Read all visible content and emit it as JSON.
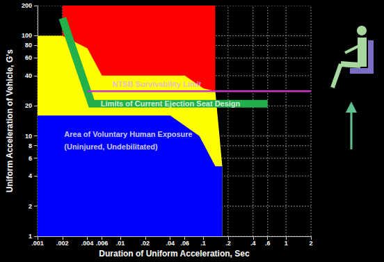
{
  "chart_data": {
    "type": "area",
    "xlabel": "Duration of Uniform Acceleration, Sec",
    "ylabel": "Uniform Acceleration of Vehicle, G's",
    "log": true,
    "grid": true,
    "xlim": [
      0.001,
      2
    ],
    "ylim": [
      1,
      200
    ],
    "xticks": [
      {
        "value": 0.001,
        "label": ".001"
      },
      {
        "value": 0.002,
        "label": ".002"
      },
      {
        "value": 0.004,
        "label": ".004"
      },
      {
        "value": 0.006,
        "label": ".006"
      },
      {
        "value": 0.01,
        "label": ".01"
      },
      {
        "value": 0.02,
        "label": ".02"
      },
      {
        "value": 0.04,
        "label": ".04"
      },
      {
        "value": 0.06,
        "label": ".06"
      },
      {
        "value": 0.1,
        "label": ".1"
      },
      {
        "value": 0.2,
        "label": ".2"
      },
      {
        "value": 0.4,
        "label": ".4"
      },
      {
        "value": 0.6,
        "label": ".6"
      },
      1,
      2
    ],
    "yticks": [
      1,
      2,
      4,
      6,
      8,
      10,
      20,
      40,
      60,
      80,
      100,
      200
    ],
    "series": [
      {
        "type": "area",
        "color": "#ff0000",
        "x": [
          0.002,
          0.14,
          0.14,
          0.002
        ],
        "values": [
          200,
          200,
          28,
          28
        ]
      },
      {
        "type": "area",
        "color": "#ffff00",
        "x": [
          0.001,
          0.002,
          0.004,
          0.006,
          0.06,
          0.1,
          0.14,
          0.17,
          0.17,
          0.001
        ],
        "values": [
          100,
          100,
          75,
          40,
          40,
          30,
          28,
          5,
          1,
          1
        ]
      },
      {
        "type": "area",
        "color": "#0000ff",
        "x": [
          0.001,
          0.04,
          0.09,
          0.14,
          0.17,
          0.17,
          0.001
        ],
        "values": [
          16,
          16,
          10,
          5,
          5,
          1,
          1
        ]
      },
      {
        "type": "line",
        "color": "#22b04a",
        "x": [
          0.002,
          0.0045,
          0.6
        ],
        "values": [
          150,
          21,
          21
        ]
      },
      {
        "type": "line",
        "color": "#cc33cc",
        "x": [
          0.004,
          2
        ],
        "values": [
          28,
          28
        ]
      }
    ],
    "annotations": [
      {
        "text": "NTSB Survivability Limit",
        "x": 0.008,
        "y": 33,
        "color": "#e0a8ff"
      },
      {
        "text": "Limits of Current Ejection Seat Design",
        "x": 0.0058,
        "y": 21,
        "color": "#ffffff"
      },
      {
        "text": "Area of Voluntary Human Exposure",
        "x": 0.0021,
        "y": 10.5,
        "color": "#ffffff"
      },
      {
        "text": "(Uninjured, Undebilitated)",
        "x": 0.0021,
        "y": 7.8,
        "color": "#ffffff"
      }
    ]
  }
}
